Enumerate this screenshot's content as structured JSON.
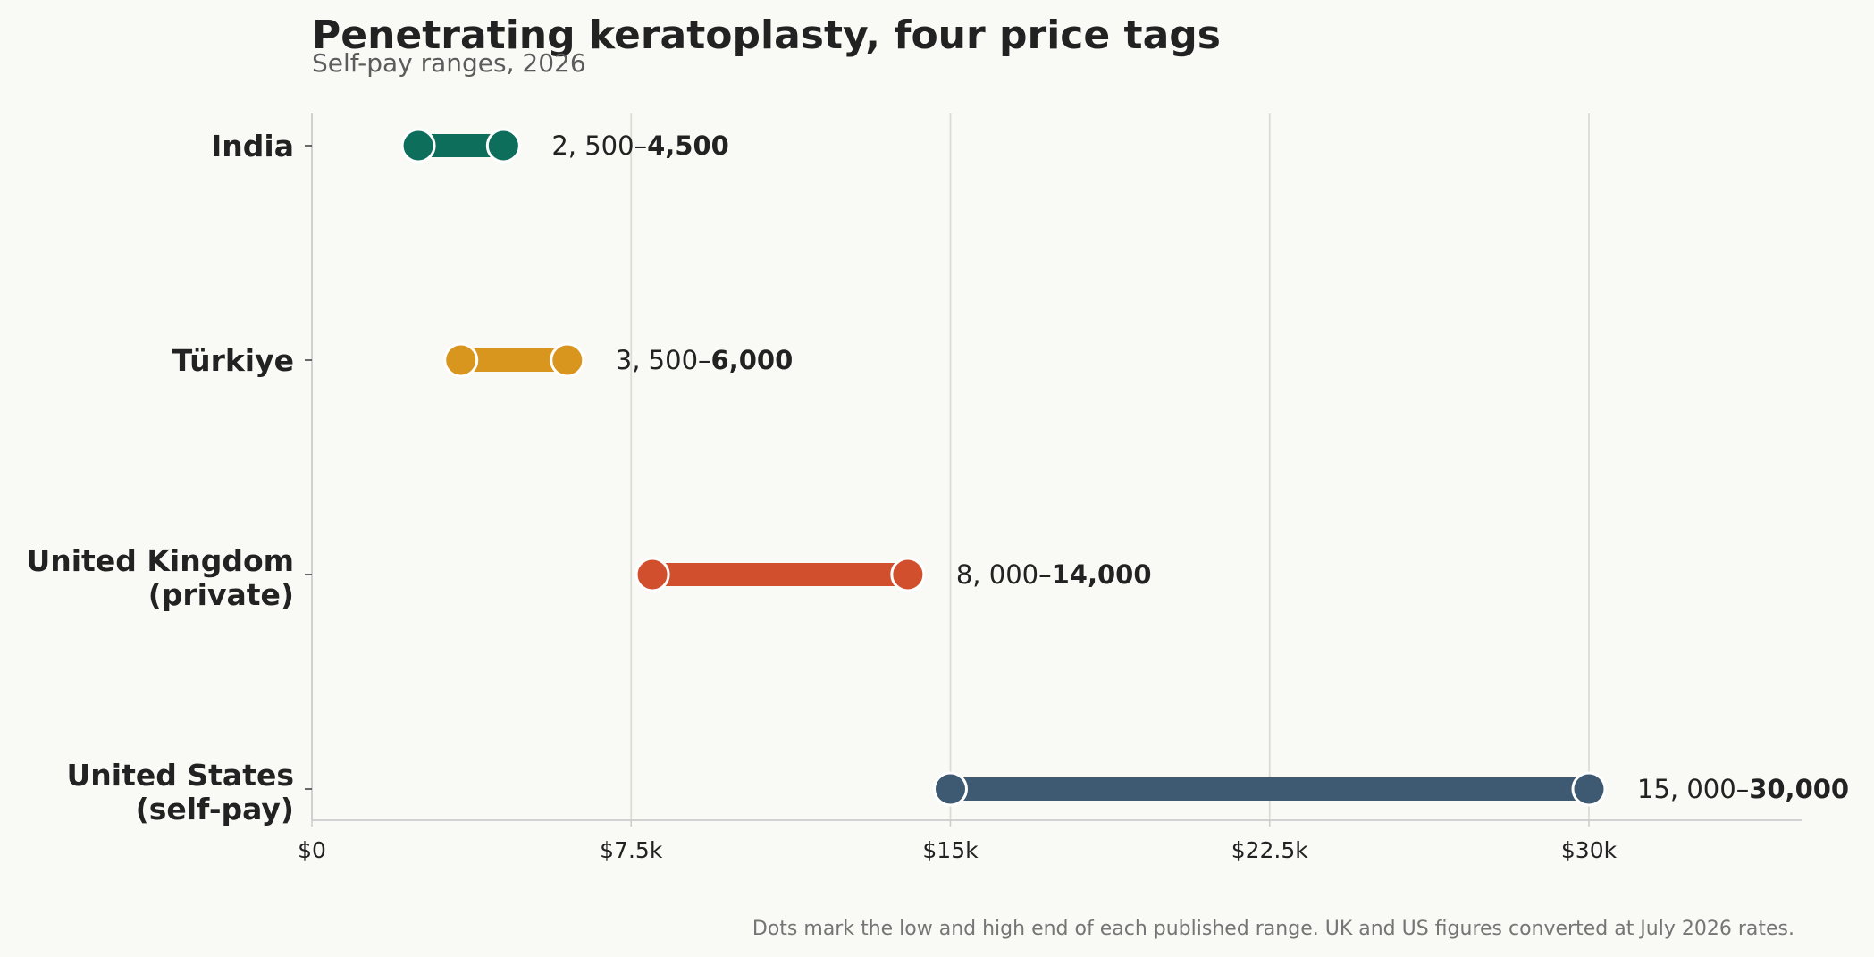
{
  "chart_data": {
    "type": "dumbbell",
    "title": "Penetrating keratoplasty, four price tags",
    "subtitle": "Self-pay ranges, 2026",
    "xlim": [
      0,
      35000
    ],
    "x_ticks": [
      {
        "value": 0,
        "label": "$0"
      },
      {
        "value": 7500,
        "label": "$7.5k"
      },
      {
        "value": 15000,
        "label": "$15k"
      },
      {
        "value": 22500,
        "label": "$22.5k"
      },
      {
        "value": 30000,
        "label": "$30k"
      }
    ],
    "grid": "vertical",
    "series": [
      {
        "category": "India",
        "low": 2500,
        "high": 4500,
        "low_label": "2, 500–",
        "high_label": "4,500",
        "color": "#0e6e5c"
      },
      {
        "category": "Türkiye",
        "low": 3500,
        "high": 6000,
        "low_label": "3, 500–",
        "high_label": "6,000",
        "color": "#d9961e"
      },
      {
        "category": "United Kingdom\n(private)",
        "low": 8000,
        "high": 14000,
        "low_label": "8, 000–",
        "high_label": "14,000",
        "color": "#d24f2e"
      },
      {
        "category": "United States\n(self-pay)",
        "low": 15000,
        "high": 30000,
        "low_label": "15, 000–",
        "high_label": "30,000",
        "color": "#3e5a73"
      }
    ],
    "footnote": "Dots mark the low and high end of each published range. UK and US figures converted at July 2026 rates."
  }
}
